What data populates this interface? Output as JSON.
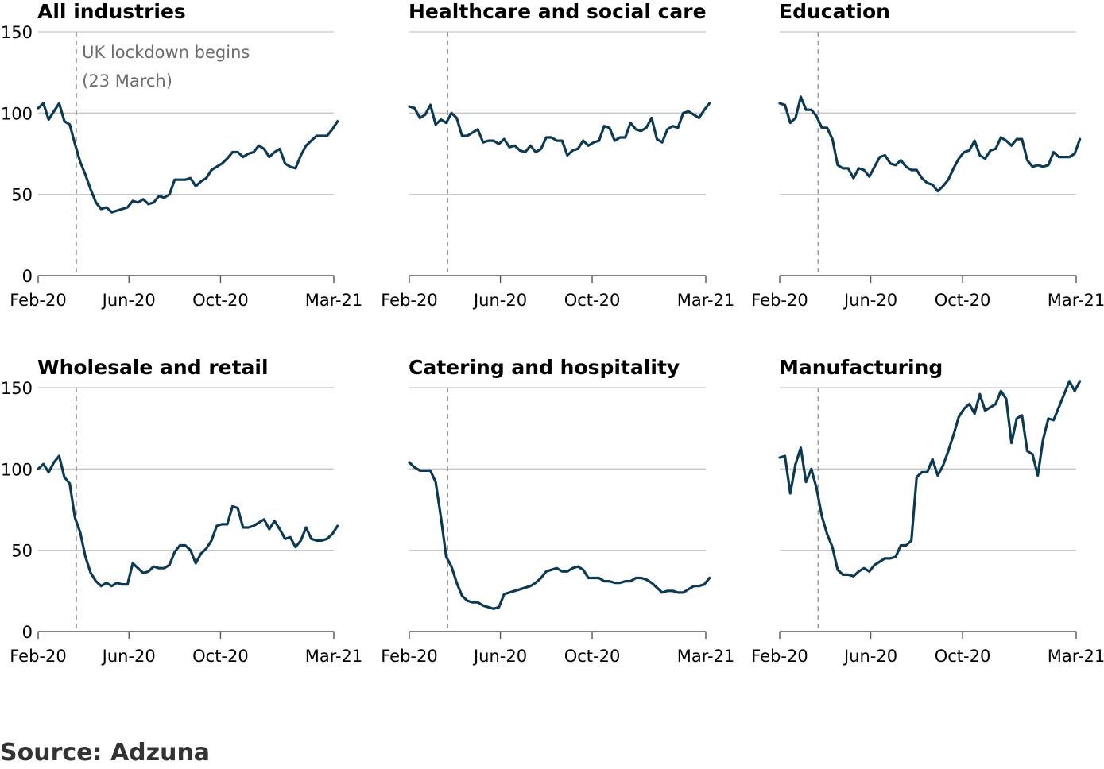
{
  "colors": {
    "line": "#0b3a52",
    "grid": "#c8c8c8",
    "axis": "#555555",
    "lockdown": "#9a9a9a",
    "annotation": "#6d6d6d"
  },
  "source": "Source: Adzuna",
  "chart_data": [
    {
      "type": "line",
      "title": "All industries",
      "x_ticks": [
        "Feb-20",
        "Jun-20",
        "Oct-20",
        "Mar-21"
      ],
      "ylim": [
        0,
        150
      ],
      "y_ticks": [
        0,
        50,
        100,
        150
      ],
      "grid": true,
      "annotation": {
        "x": "2020-03-23",
        "lines": [
          "UK lockdown begins",
          "(23 March)"
        ]
      },
      "series": [
        {
          "x_start": "2020-02-01",
          "x_step_days": 7,
          "values": [
            103,
            106,
            96,
            101,
            106,
            95,
            93,
            81,
            70,
            62,
            53,
            45,
            41,
            42,
            39,
            40,
            41,
            42,
            46,
            45,
            47,
            44,
            45,
            49,
            48,
            50,
            59,
            59,
            59,
            60,
            55,
            58,
            60,
            65,
            67,
            69,
            72,
            76,
            76,
            73,
            75,
            76,
            80,
            78,
            73,
            76,
            78,
            69,
            67,
            66,
            74,
            80,
            83,
            86,
            86,
            86,
            90,
            95
          ]
        }
      ]
    },
    {
      "type": "line",
      "title": "Healthcare and social care",
      "x_ticks": [
        "Feb-20",
        "Jun-20",
        "Oct-20",
        "Mar-21"
      ],
      "ylim": [
        0,
        150
      ],
      "y_ticks": [
        0,
        50,
        100,
        150
      ],
      "grid": true,
      "annotation": {
        "x": "2020-03-23"
      },
      "series": [
        {
          "x_start": "2020-02-01",
          "x_step_days": 7,
          "values": [
            104,
            103,
            97,
            99,
            105,
            93,
            96,
            94,
            100,
            97,
            86,
            86,
            88,
            90,
            82,
            83,
            83,
            81,
            84,
            79,
            80,
            77,
            76,
            80,
            76,
            78,
            85,
            85,
            83,
            83,
            74,
            77,
            78,
            83,
            80,
            82,
            83,
            92,
            91,
            83,
            85,
            85,
            94,
            90,
            89,
            91,
            97,
            84,
            82,
            90,
            92,
            91,
            100,
            101,
            99,
            97,
            102,
            106
          ]
        }
      ]
    },
    {
      "type": "line",
      "title": "Education",
      "x_ticks": [
        "Feb-20",
        "Jun-20",
        "Oct-20",
        "Mar-21"
      ],
      "ylim": [
        0,
        150
      ],
      "y_ticks": [
        0,
        50,
        100,
        150
      ],
      "grid": true,
      "annotation": {
        "x": "2020-03-23"
      },
      "series": [
        {
          "x_start": "2020-02-01",
          "x_step_days": 7,
          "values": [
            106,
            105,
            94,
            97,
            110,
            102,
            102,
            98,
            91,
            91,
            84,
            68,
            66,
            66,
            60,
            66,
            65,
            61,
            67,
            73,
            74,
            69,
            68,
            71,
            67,
            65,
            65,
            60,
            57,
            56,
            52,
            55,
            59,
            66,
            72,
            76,
            77,
            83,
            74,
            72,
            77,
            78,
            85,
            83,
            80,
            84,
            84,
            71,
            67,
            68,
            67,
            68,
            76,
            73,
            73,
            73,
            75,
            84
          ]
        }
      ]
    },
    {
      "type": "line",
      "title": "Wholesale and retail",
      "x_ticks": [
        "Feb-20",
        "Jun-20",
        "Oct-20",
        "Mar-21"
      ],
      "ylim": [
        0,
        150
      ],
      "y_ticks": [
        0,
        50,
        100,
        150
      ],
      "grid": true,
      "annotation": {
        "x": "2020-03-23"
      },
      "series": [
        {
          "x_start": "2020-02-01",
          "x_step_days": 7,
          "values": [
            100,
            103,
            98,
            104,
            108,
            95,
            91,
            70,
            61,
            46,
            36,
            31,
            28,
            30,
            28,
            30,
            29,
            29,
            42,
            39,
            36,
            37,
            40,
            39,
            39,
            41,
            49,
            53,
            53,
            50,
            42,
            48,
            51,
            56,
            65,
            66,
            66,
            77,
            76,
            64,
            64,
            65,
            67,
            69,
            63,
            68,
            63,
            57,
            58,
            52,
            56,
            64,
            57,
            56,
            56,
            57,
            60,
            65
          ]
        }
      ]
    },
    {
      "type": "line",
      "title": "Catering and hospitality",
      "x_ticks": [
        "Feb-20",
        "Jun-20",
        "Oct-20",
        "Mar-21"
      ],
      "ylim": [
        0,
        150
      ],
      "y_ticks": [
        0,
        50,
        100,
        150
      ],
      "grid": true,
      "annotation": {
        "x": "2020-03-23"
      },
      "series": [
        {
          "x_start": "2020-02-01",
          "x_step_days": 7,
          "values": [
            104,
            101,
            99,
            99,
            99,
            92,
            70,
            46,
            40,
            30,
            22,
            19,
            18,
            18,
            16,
            15,
            14,
            15,
            23,
            24,
            25,
            26,
            27,
            28,
            30,
            33,
            37,
            38,
            39,
            37,
            37,
            39,
            40,
            38,
            33,
            33,
            33,
            31,
            31,
            30,
            30,
            31,
            31,
            33,
            33,
            32,
            30,
            27,
            24,
            25,
            25,
            24,
            24,
            26,
            28,
            28,
            29,
            33
          ]
        }
      ]
    },
    {
      "type": "line",
      "title": "Manufacturing",
      "x_ticks": [
        "Feb-20",
        "Jun-20",
        "Oct-20",
        "Mar-21"
      ],
      "ylim": [
        0,
        150
      ],
      "y_ticks": [
        0,
        50,
        100,
        150
      ],
      "grid": true,
      "annotation": {
        "x": "2020-03-23"
      },
      "series": [
        {
          "x_start": "2020-02-01",
          "x_step_days": 7,
          "values": [
            107,
            108,
            85,
            103,
            113,
            92,
            100,
            88,
            71,
            60,
            52,
            38,
            35,
            35,
            34,
            37,
            39,
            37,
            41,
            43,
            45,
            45,
            46,
            53,
            53,
            56,
            95,
            98,
            98,
            106,
            96,
            102,
            111,
            121,
            132,
            137,
            140,
            134,
            146,
            136,
            138,
            140,
            148,
            143,
            116,
            131,
            133,
            111,
            109,
            96,
            118,
            131,
            130,
            138,
            146,
            154,
            148,
            154
          ]
        }
      ]
    }
  ]
}
